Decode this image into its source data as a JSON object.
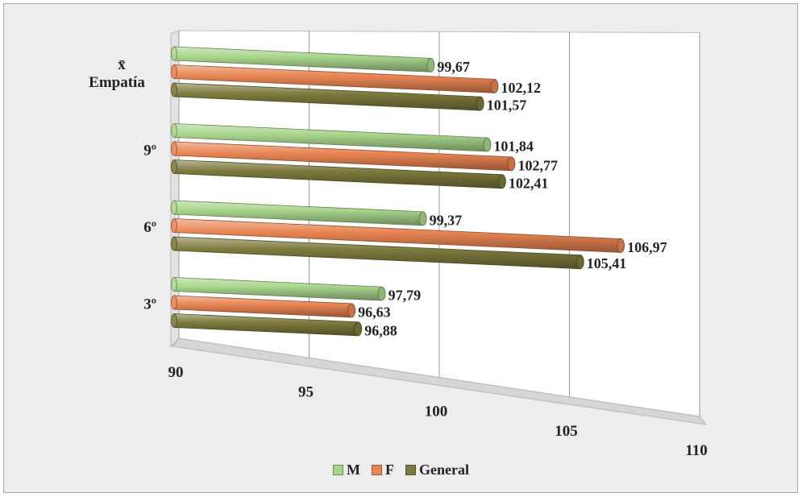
{
  "chart_data": {
    "type": "bar",
    "orientation": "horizontal",
    "style": "3d-cylinder",
    "categories": [
      "3º",
      "6º",
      "9º",
      "x̄ Empatía"
    ],
    "series": [
      {
        "name": "M",
        "color": "#a8d58c",
        "values": [
          97.79,
          99.37,
          101.84,
          99.67
        ],
        "labels": [
          "97,79",
          "99,37",
          "101,84",
          "99,67"
        ]
      },
      {
        "name": "F",
        "color": "#e98553",
        "values": [
          96.63,
          106.97,
          102.77,
          102.12
        ],
        "labels": [
          "96,63",
          "106,97",
          "102,77",
          "102,12"
        ]
      },
      {
        "name": "General",
        "color": "#7c7a3c",
        "values": [
          96.88,
          105.41,
          102.41,
          101.57
        ],
        "labels": [
          "96,88",
          "105,41",
          "102,41",
          "101,57"
        ]
      }
    ],
    "xlim": [
      90,
      110
    ],
    "ticks": [
      "90",
      "95",
      "100",
      "105",
      "110"
    ],
    "grid": true,
    "legend": "bottom"
  }
}
